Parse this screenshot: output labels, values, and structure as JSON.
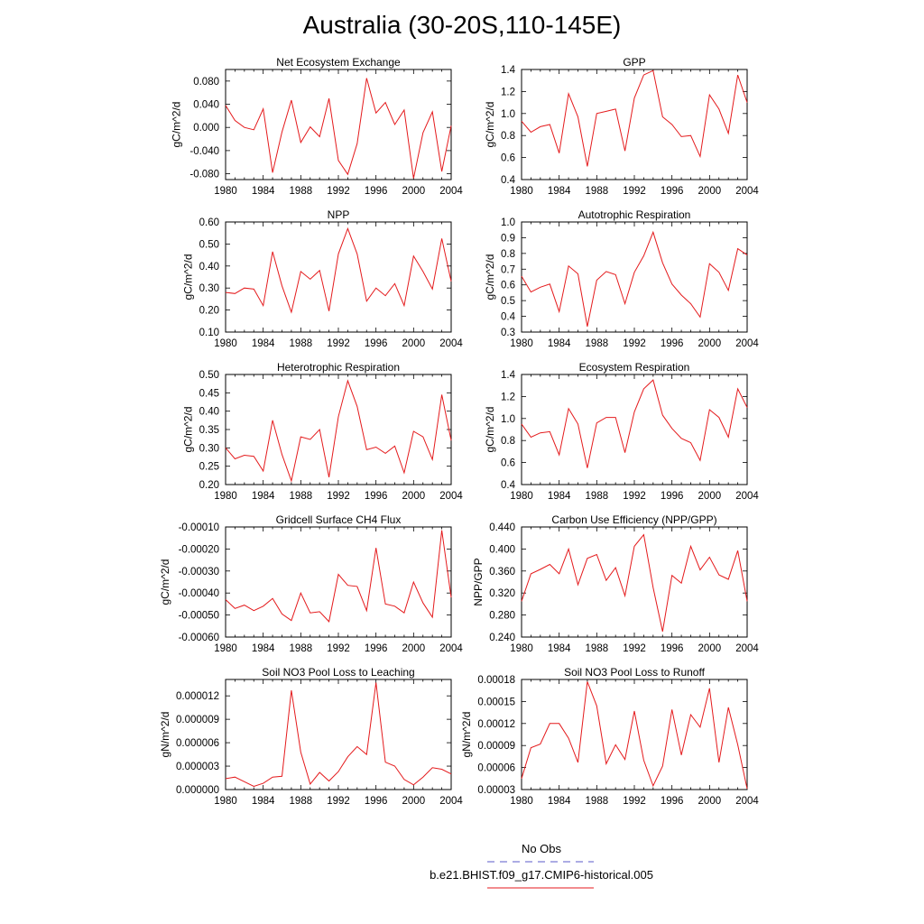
{
  "title": "Australia (30-20S,110-145E)",
  "legend": {
    "obs_label": "No Obs",
    "obs_color": "#5a5ac8",
    "run_label": "b.e21.BHIST.f09_g17.CMIP6-historical.005",
    "run_color": "#e41a1c"
  },
  "chart_data": [
    {
      "type": "line",
      "title": "Net Ecosystem Exchange",
      "ylabel": "gC/m^2/d",
      "xlim": [
        1980,
        2004
      ],
      "ylim": [
        -0.09,
        0.1
      ],
      "yticks": [
        -0.08,
        -0.04,
        0.0,
        0.04,
        0.08
      ],
      "ytick_labels": [
        "-0.080",
        "-0.040",
        "0.000",
        "0.040",
        "0.080"
      ],
      "xticks": [
        1980,
        1984,
        1988,
        1992,
        1996,
        2000,
        2004
      ],
      "x": [
        1980,
        1981,
        1982,
        1983,
        1984,
        1985,
        1986,
        1987,
        1988,
        1989,
        1990,
        1991,
        1992,
        1993,
        1994,
        1995,
        1996,
        1997,
        1998,
        1999,
        2000,
        2001,
        2002,
        2003,
        2004
      ],
      "series": [
        {
          "values": [
            0.038,
            0.012,
            0.0,
            -0.004,
            0.032,
            -0.078,
            -0.008,
            0.047,
            -0.026,
            0.001,
            -0.016,
            0.05,
            -0.057,
            -0.081,
            -0.028,
            0.085,
            0.025,
            0.043,
            0.005,
            0.03,
            -0.088,
            -0.009,
            0.027,
            -0.076,
            0.003
          ]
        }
      ]
    },
    {
      "type": "line",
      "title": "GPP",
      "ylabel": "gC/m^2/d",
      "xlim": [
        1980,
        2004
      ],
      "ylim": [
        0.4,
        1.4
      ],
      "yticks": [
        0.4,
        0.6,
        0.8,
        1.0,
        1.2,
        1.4
      ],
      "ytick_labels": [
        "0.4",
        "0.6",
        "0.8",
        "1.0",
        "1.2",
        "1.4"
      ],
      "xticks": [
        1980,
        1984,
        1988,
        1992,
        1996,
        2000,
        2004
      ],
      "x": [
        1980,
        1981,
        1982,
        1983,
        1984,
        1985,
        1986,
        1987,
        1988,
        1989,
        1990,
        1991,
        1992,
        1993,
        1994,
        1995,
        1996,
        1997,
        1998,
        1999,
        2000,
        2001,
        2002,
        2003,
        2004
      ],
      "series": [
        {
          "values": [
            0.93,
            0.83,
            0.88,
            0.9,
            0.64,
            1.18,
            0.97,
            0.52,
            1.0,
            1.02,
            1.04,
            0.66,
            1.14,
            1.35,
            1.39,
            0.97,
            0.9,
            0.79,
            0.8,
            0.61,
            1.17,
            1.04,
            0.82,
            1.35,
            1.1
          ]
        }
      ]
    },
    {
      "type": "line",
      "title": "NPP",
      "ylabel": "gC/m^2/d",
      "xlim": [
        1980,
        2004
      ],
      "ylim": [
        0.1,
        0.6
      ],
      "yticks": [
        0.1,
        0.2,
        0.3,
        0.4,
        0.5,
        0.6
      ],
      "ytick_labels": [
        "0.10",
        "0.20",
        "0.30",
        "0.40",
        "0.50",
        "0.60"
      ],
      "xticks": [
        1980,
        1984,
        1988,
        1992,
        1996,
        2000,
        2004
      ],
      "x": [
        1980,
        1981,
        1982,
        1983,
        1984,
        1985,
        1986,
        1987,
        1988,
        1989,
        1990,
        1991,
        1992,
        1993,
        1994,
        1995,
        1996,
        1997,
        1998,
        1999,
        2000,
        2001,
        2002,
        2003,
        2004
      ],
      "series": [
        {
          "values": [
            0.28,
            0.275,
            0.3,
            0.295,
            0.22,
            0.465,
            0.31,
            0.19,
            0.375,
            0.34,
            0.38,
            0.195,
            0.455,
            0.57,
            0.455,
            0.24,
            0.3,
            0.265,
            0.32,
            0.22,
            0.445,
            0.375,
            0.295,
            0.525,
            0.33
          ]
        }
      ]
    },
    {
      "type": "line",
      "title": "Autotrophic Respiration",
      "ylabel": "gC/m^2/d",
      "xlim": [
        1980,
        2004
      ],
      "ylim": [
        0.3,
        1.0
      ],
      "yticks": [
        0.3,
        0.4,
        0.5,
        0.6,
        0.7,
        0.8,
        0.9,
        1.0
      ],
      "ytick_labels": [
        "0.3",
        "0.4",
        "0.5",
        "0.6",
        "0.7",
        "0.8",
        "0.9",
        "1.0"
      ],
      "xticks": [
        1980,
        1984,
        1988,
        1992,
        1996,
        2000,
        2004
      ],
      "x": [
        1980,
        1981,
        1982,
        1983,
        1984,
        1985,
        1986,
        1987,
        1988,
        1989,
        1990,
        1991,
        1992,
        1993,
        1994,
        1995,
        1996,
        1997,
        1998,
        1999,
        2000,
        2001,
        2002,
        2003,
        2004
      ],
      "series": [
        {
          "values": [
            0.655,
            0.555,
            0.585,
            0.605,
            0.43,
            0.72,
            0.67,
            0.335,
            0.63,
            0.685,
            0.665,
            0.48,
            0.68,
            0.785,
            0.935,
            0.74,
            0.605,
            0.535,
            0.48,
            0.395,
            0.735,
            0.68,
            0.565,
            0.83,
            0.79
          ]
        }
      ]
    },
    {
      "type": "line",
      "title": "Heterotrophic Respiration",
      "ylabel": "gC/m^2/d",
      "xlim": [
        1980,
        2004
      ],
      "ylim": [
        0.2,
        0.5
      ],
      "yticks": [
        0.2,
        0.25,
        0.3,
        0.35,
        0.4,
        0.45,
        0.5
      ],
      "ytick_labels": [
        "0.20",
        "0.25",
        "0.30",
        "0.35",
        "0.40",
        "0.45",
        "0.50"
      ],
      "xticks": [
        1980,
        1984,
        1988,
        1992,
        1996,
        2000,
        2004
      ],
      "x": [
        1980,
        1981,
        1982,
        1983,
        1984,
        1985,
        1986,
        1987,
        1988,
        1989,
        1990,
        1991,
        1992,
        1993,
        1994,
        1995,
        1996,
        1997,
        1998,
        1999,
        2000,
        2001,
        2002,
        2003,
        2004
      ],
      "series": [
        {
          "values": [
            0.3,
            0.27,
            0.28,
            0.277,
            0.237,
            0.375,
            0.282,
            0.21,
            0.33,
            0.323,
            0.35,
            0.22,
            0.385,
            0.483,
            0.413,
            0.295,
            0.302,
            0.285,
            0.305,
            0.232,
            0.345,
            0.33,
            0.268,
            0.445,
            0.32
          ]
        }
      ]
    },
    {
      "type": "line",
      "title": "Ecosystem Respiration",
      "ylabel": "gC/m^2/d",
      "xlim": [
        1980,
        2004
      ],
      "ylim": [
        0.4,
        1.4
      ],
      "yticks": [
        0.4,
        0.6,
        0.8,
        1.0,
        1.2,
        1.4
      ],
      "ytick_labels": [
        "0.4",
        "0.6",
        "0.8",
        "1.0",
        "1.2",
        "1.4"
      ],
      "xticks": [
        1980,
        1984,
        1988,
        1992,
        1996,
        2000,
        2004
      ],
      "x": [
        1980,
        1981,
        1982,
        1983,
        1984,
        1985,
        1986,
        1987,
        1988,
        1989,
        1990,
        1991,
        1992,
        1993,
        1994,
        1995,
        1996,
        1997,
        1998,
        1999,
        2000,
        2001,
        2002,
        2003,
        2004
      ],
      "series": [
        {
          "values": [
            0.95,
            0.83,
            0.87,
            0.88,
            0.67,
            1.09,
            0.95,
            0.55,
            0.96,
            1.01,
            1.01,
            0.69,
            1.06,
            1.27,
            1.35,
            1.03,
            0.91,
            0.82,
            0.78,
            0.62,
            1.08,
            1.01,
            0.83,
            1.27,
            1.1
          ]
        }
      ]
    },
    {
      "type": "line",
      "title": "Gridcell Surface CH4 Flux",
      "ylabel": "gC/m^2/d",
      "xlim": [
        1980,
        2004
      ],
      "ylim": [
        -0.0006,
        -0.0001
      ],
      "yticks": [
        -0.0006,
        -0.0005,
        -0.0004,
        -0.0003,
        -0.0002,
        -0.0001
      ],
      "ytick_labels": [
        "-0.00060",
        "-0.00050",
        "-0.00040",
        "-0.00030",
        "-0.00020",
        "-0.00010"
      ],
      "xticks": [
        1980,
        1984,
        1988,
        1992,
        1996,
        2000,
        2004
      ],
      "x": [
        1980,
        1981,
        1982,
        1983,
        1984,
        1985,
        1986,
        1987,
        1988,
        1989,
        1990,
        1991,
        1992,
        1993,
        1994,
        1995,
        1996,
        1997,
        1998,
        1999,
        2000,
        2001,
        2002,
        2003,
        2004
      ],
      "series": [
        {
          "values": [
            -0.00043,
            -0.00047,
            -0.000455,
            -0.00048,
            -0.00046,
            -0.000425,
            -0.000495,
            -0.000525,
            -0.0004,
            -0.00049,
            -0.000485,
            -0.00053,
            -0.000315,
            -0.000365,
            -0.00037,
            -0.00048,
            -0.000195,
            -0.00045,
            -0.00046,
            -0.00049,
            -0.00035,
            -0.000445,
            -0.00051,
            -0.000115,
            -0.00042
          ]
        }
      ]
    },
    {
      "type": "line",
      "title": "Carbon Use Efficiency (NPP/GPP)",
      "ylabel": "NPP/GPP",
      "xlim": [
        1980,
        2004
      ],
      "ylim": [
        0.24,
        0.44
      ],
      "yticks": [
        0.24,
        0.28,
        0.32,
        0.36,
        0.4,
        0.44
      ],
      "ytick_labels": [
        "0.240",
        "0.280",
        "0.320",
        "0.360",
        "0.400",
        "0.440"
      ],
      "xticks": [
        1980,
        1984,
        1988,
        1992,
        1996,
        2000,
        2004
      ],
      "x": [
        1980,
        1981,
        1982,
        1983,
        1984,
        1985,
        1986,
        1987,
        1988,
        1989,
        1990,
        1991,
        1992,
        1993,
        1994,
        1995,
        1996,
        1997,
        1998,
        1999,
        2000,
        2001,
        2002,
        2003,
        2004
      ],
      "series": [
        {
          "values": [
            0.305,
            0.355,
            0.363,
            0.372,
            0.355,
            0.4,
            0.335,
            0.383,
            0.39,
            0.343,
            0.366,
            0.315,
            0.405,
            0.426,
            0.33,
            0.25,
            0.352,
            0.338,
            0.405,
            0.362,
            0.385,
            0.353,
            0.345,
            0.397,
            0.305
          ]
        }
      ]
    },
    {
      "type": "line",
      "title": "Soil NO3 Pool Loss to Leaching",
      "ylabel": "gN/m^2/d",
      "xlim": [
        1980,
        2004
      ],
      "ylim": [
        0.0,
        1.41e-05
      ],
      "yticks": [
        0.0,
        3e-06,
        6e-06,
        9e-06,
        1.2e-05
      ],
      "ytick_labels": [
        "0.000000",
        "0.000003",
        "0.000006",
        "0.000009",
        "0.000012"
      ],
      "xticks": [
        1980,
        1984,
        1988,
        1992,
        1996,
        2000,
        2004
      ],
      "x": [
        1980,
        1981,
        1982,
        1983,
        1984,
        1985,
        1986,
        1987,
        1988,
        1989,
        1990,
        1991,
        1992,
        1993,
        1994,
        1995,
        1996,
        1997,
        1998,
        1999,
        2000,
        2001,
        2002,
        2003,
        2004
      ],
      "series": [
        {
          "values": [
            1.4e-06,
            1.6e-06,
            1e-06,
            4e-07,
            8e-07,
            1.6e-06,
            1.7e-06,
            1.27e-05,
            4.8e-06,
            7e-07,
            2.2e-06,
            1.1e-06,
            2.3e-06,
            4.2e-06,
            5.5e-06,
            4.5e-06,
            1.37e-05,
            3.5e-06,
            3e-06,
            1.3e-06,
            6e-07,
            1.6e-06,
            2.8e-06,
            2.6e-06,
            2e-06
          ]
        }
      ]
    },
    {
      "type": "line",
      "title": "Soil NO3 Pool Loss to Runoff",
      "ylabel": "gN/m^2/d",
      "xlim": [
        1980,
        2004
      ],
      "ylim": [
        3e-05,
        0.00018
      ],
      "yticks": [
        3e-05,
        6e-05,
        9e-05,
        0.00012,
        0.00015,
        0.00018
      ],
      "ytick_labels": [
        "0.00003",
        "0.00006",
        "0.00009",
        "0.00012",
        "0.00015",
        "0.00018"
      ],
      "xticks": [
        1980,
        1984,
        1988,
        1992,
        1996,
        2000,
        2004
      ],
      "x": [
        1980,
        1981,
        1982,
        1983,
        1984,
        1985,
        1986,
        1987,
        1988,
        1989,
        1990,
        1991,
        1992,
        1993,
        1994,
        1995,
        1996,
        1997,
        1998,
        1999,
        2000,
        2001,
        2002,
        2003,
        2004
      ],
      "series": [
        {
          "values": [
            4.5e-05,
            8.7e-05,
            9.2e-05,
            0.00012,
            0.00012,
            0.0001,
            6.7e-05,
            0.000177,
            0.000144,
            6.5e-05,
            9.1e-05,
            7.1e-05,
            0.000137,
            7e-05,
            3.5e-05,
            6.2e-05,
            0.000139,
            7.7e-05,
            0.000132,
            0.000115,
            0.000168,
            6.7e-05,
            0.000142,
            9.1e-05,
            3.1e-05
          ]
        }
      ]
    }
  ]
}
